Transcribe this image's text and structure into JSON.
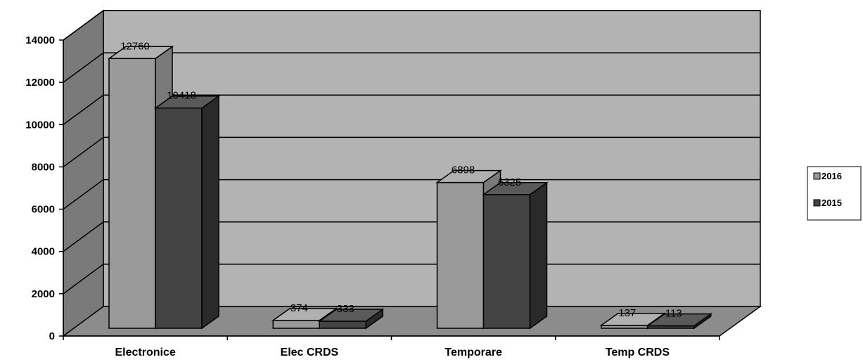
{
  "chart_data": {
    "type": "bar",
    "categories": [
      "Electronice",
      "Elec CRDS",
      "Temporare",
      "Temp CRDS"
    ],
    "series": [
      {
        "name": "2016",
        "values": [
          12760,
          374,
          6898,
          137
        ],
        "color": "#999999",
        "side": "#7a7a7a",
        "top": "#b0b0b0"
      },
      {
        "name": "2015",
        "values": [
          10418,
          333,
          6325,
          113
        ],
        "color": "#444444",
        "side": "#2a2a2a",
        "top": "#5a5a5a"
      }
    ],
    "yticks": [
      "0",
      "2000",
      "4000",
      "6000",
      "8000",
      "10000",
      "12000",
      "14000"
    ],
    "ylim": [
      0,
      14000
    ],
    "grid": true,
    "legend_position": "right",
    "three_d": true,
    "colors": {
      "wall": "#b3b3b3",
      "side_wall": "#7a7a7a",
      "floor": "#8c8c8c"
    }
  }
}
